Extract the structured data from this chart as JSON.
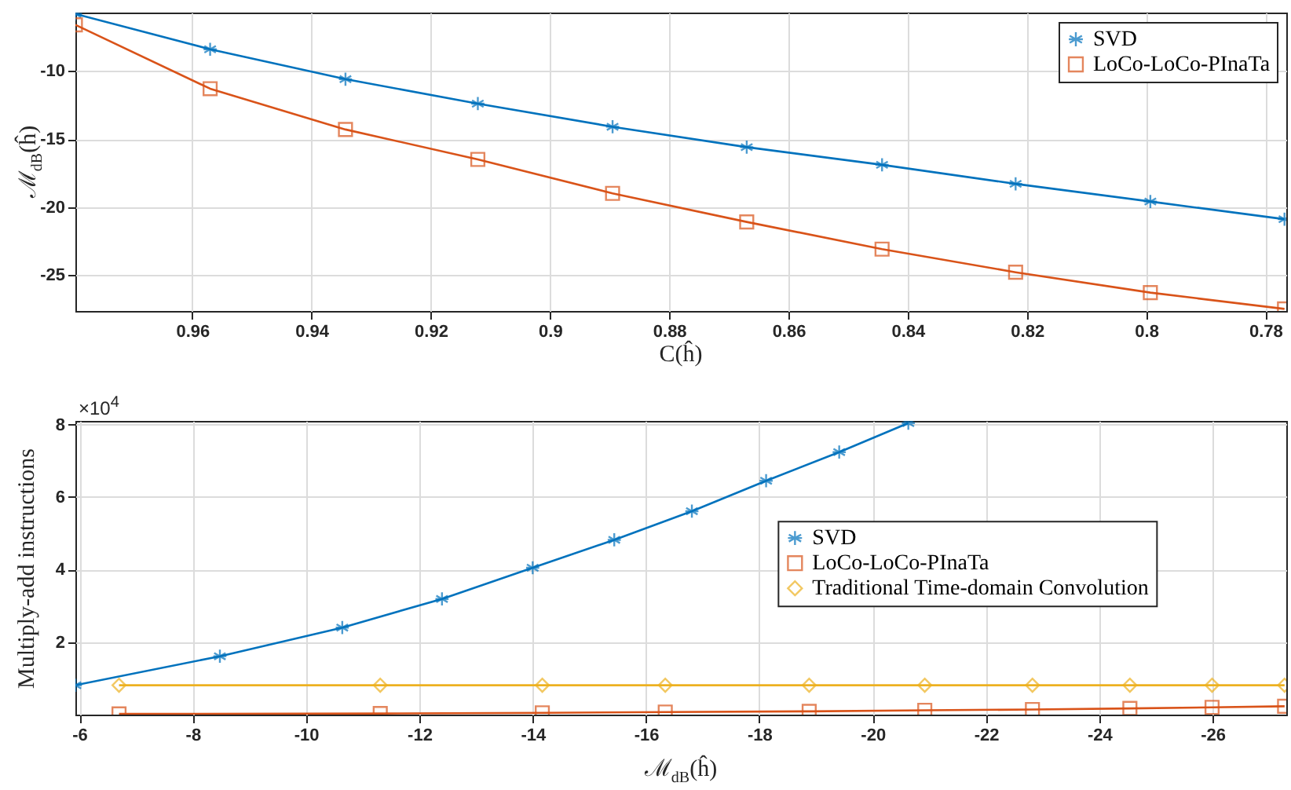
{
  "chart_data": [
    {
      "type": "line",
      "xlabel": "C(ĥ)",
      "ylabel": "ℳ$_{dB}$(ĥ)",
      "xlim": [
        0.9796,
        0.7765
      ],
      "xticks": [
        0.96,
        0.94,
        0.92,
        0.9,
        0.88,
        0.86,
        0.84,
        0.82,
        0.8,
        0.78
      ],
      "ylim": [
        -27.65,
        -5.7
      ],
      "yticks": [
        -25,
        -20,
        -15,
        -10
      ],
      "grid": true,
      "legend": "top right",
      "line_style": "solid",
      "series": [
        {
          "name": "SVD",
          "color": "#0072bd",
          "marker": "cross",
          "x": [
            0.9796,
            0.957,
            0.9343,
            0.9121,
            0.8895,
            0.867,
            0.8443,
            0.8219,
            0.7993,
            0.7768
          ],
          "values": [
            -5.8,
            -8.4,
            -10.6,
            -12.4,
            -14.1,
            -15.6,
            -16.9,
            -18.3,
            -19.6,
            -20.9
          ]
        },
        {
          "name": "LoCo-LoCo-PInaTa",
          "color": "#d95319",
          "marker": "square",
          "x": [
            0.9796,
            0.957,
            0.9343,
            0.9121,
            0.8895,
            0.867,
            0.8443,
            0.8219,
            0.7993,
            0.7768
          ],
          "values": [
            -6.6,
            -11.3,
            -14.3,
            -16.5,
            -19.0,
            -21.1,
            -23.1,
            -24.8,
            -26.3,
            -27.5
          ]
        }
      ]
    },
    {
      "type": "line",
      "xlabel": "ℳ$_{dB}$(ĥ)",
      "ylabel": "Multiply-add instructions",
      "annotations": [
        "×10$^{4}$"
      ],
      "xlim": [
        -5.93,
        -27.3
      ],
      "xticks": [
        -6,
        -8,
        -10,
        -12,
        -14,
        -16,
        -18,
        -20,
        -22,
        -24,
        -26
      ],
      "ylim": [
        0,
        8.1
      ],
      "yticks": [
        2,
        4,
        6,
        8
      ],
      "grid": true,
      "legend": "right",
      "line_style": "solid",
      "series": [
        {
          "name": "SVD",
          "color": "#0072bd",
          "marker": "cross",
          "x": [
            -5.93,
            -8.48,
            -10.64,
            -12.4,
            -14.0,
            -15.44,
            -16.81,
            -18.12,
            -19.41,
            -20.63
          ],
          "values": [
            0.81,
            1.61,
            2.4,
            3.19,
            4.05,
            4.82,
            5.61,
            6.45,
            7.24,
            8.04
          ]
        },
        {
          "name": "LoCo-LoCo-PInaTa",
          "color": "#d95319",
          "marker": "square",
          "x": [
            -6.7,
            -11.31,
            -14.17,
            -16.34,
            -18.88,
            -20.92,
            -22.82,
            -24.54,
            -25.99,
            -27.27
          ],
          "values": [
            0.02,
            0.03,
            0.05,
            0.07,
            0.09,
            0.12,
            0.14,
            0.17,
            0.2,
            0.23
          ]
        },
        {
          "name": "Traditional Time-domain Convolution",
          "color": "#edb120",
          "marker": "diamond",
          "x": [
            -6.7,
            -11.31,
            -14.17,
            -16.34,
            -18.88,
            -20.92,
            -22.82,
            -24.54,
            -25.99,
            -27.27
          ],
          "values": [
            0.81,
            0.81,
            0.81,
            0.81,
            0.81,
            0.81,
            0.81,
            0.81,
            0.81,
            0.81
          ]
        }
      ]
    }
  ]
}
